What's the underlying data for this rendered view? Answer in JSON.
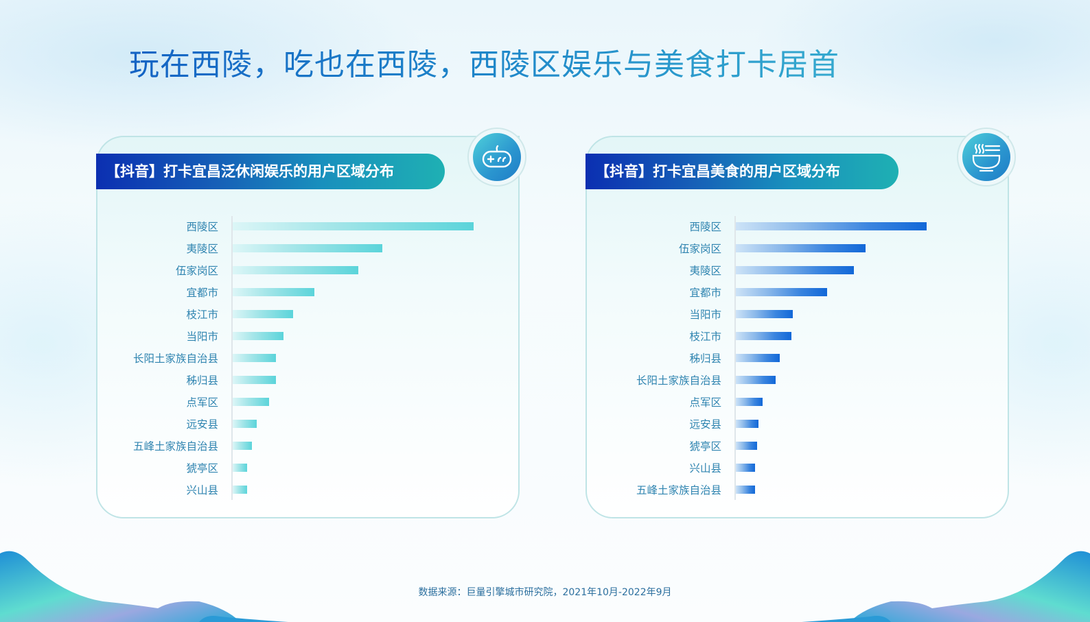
{
  "page": {
    "title": "玩在西陵，吃也在西陵，西陵区娱乐与美食打卡居首",
    "source": "数据来源：巨量引擎城市研究院，2021年10月-2022年9月"
  },
  "panels": [
    {
      "title": "【抖音】打卡宜昌泛休闲娱乐的用户区域分布",
      "icon": "gamepad-icon",
      "color": "#5bd4da"
    },
    {
      "title": "【抖音】打卡宜昌美食的用户区域分布",
      "icon": "noodle-bowl-icon",
      "color": "#1268d8"
    }
  ],
  "chart_data": [
    {
      "type": "bar",
      "orientation": "horizontal",
      "title": "【抖音】打卡宜昌泛休闲娱乐的用户区域分布",
      "categories": [
        "西陵区",
        "夷陵区",
        "伍家岗区",
        "宜都市",
        "枝江市",
        "当阳市",
        "长阳土家族自治县",
        "秭归县",
        "点军区",
        "远安县",
        "五峰土家族自治县",
        "猇亭区",
        "兴山县"
      ],
      "values": [
        100,
        62,
        52,
        34,
        25,
        21,
        18,
        18,
        15,
        10,
        8,
        6,
        6
      ],
      "xlabel": "",
      "ylabel": "",
      "unit": "relative (max = 100), no axis ticks shown",
      "grid": false,
      "legend": null
    },
    {
      "type": "bar",
      "orientation": "horizontal",
      "title": "【抖音】打卡宜昌美食的用户区域分布",
      "categories": [
        "西陵区",
        "伍家岗区",
        "夷陵区",
        "宜都市",
        "当阳市",
        "枝江市",
        "秭归县",
        "长阳土家族自治县",
        "点军区",
        "远安县",
        "猇亭区",
        "兴山县",
        "五峰土家族自治县"
      ],
      "values": [
        100,
        68,
        62,
        48,
        30,
        29,
        23,
        21,
        14,
        12,
        11,
        10,
        10
      ],
      "xlabel": "",
      "ylabel": "",
      "unit": "relative (max = 100), no axis ticks shown",
      "grid": false,
      "legend": null
    }
  ]
}
